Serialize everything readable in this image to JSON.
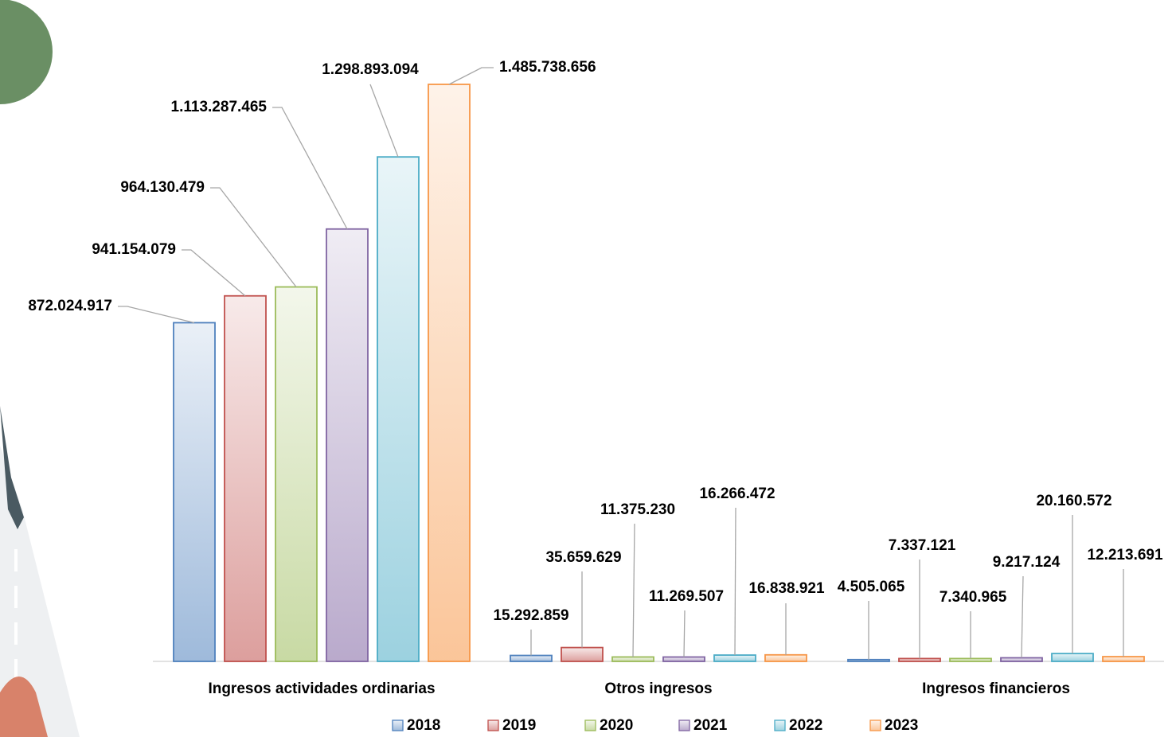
{
  "chart_data": {
    "type": "bar",
    "categories": [
      "Ingresos actividades ordinarias",
      "Otros ingresos",
      "Ingresos financieros"
    ],
    "series": [
      {
        "name": "2018",
        "color": "#4f81bd",
        "values": [
          872024917,
          15292859,
          4505065
        ],
        "value_labels": [
          "872.024.917",
          "15.292.859",
          "4.505.065"
        ]
      },
      {
        "name": "2019",
        "color": "#c0504d",
        "values": [
          941154079,
          35659629,
          7337121
        ],
        "value_labels": [
          "941.154.079",
          "35.659.629",
          "7.337.121"
        ]
      },
      {
        "name": "2020",
        "color": "#9bbb59",
        "values": [
          964130479,
          11375230,
          7340965
        ],
        "value_labels": [
          "964.130.479",
          "11.375.230",
          "7.340.965"
        ]
      },
      {
        "name": "2021",
        "color": "#8064a2",
        "values": [
          1113287465,
          11269507,
          9217124
        ],
        "value_labels": [
          "1.113.287.465",
          "11.269.507",
          "9.217.124"
        ]
      },
      {
        "name": "2022",
        "color": "#4bacc6",
        "values": [
          1298893094,
          16266472,
          20160572
        ],
        "value_labels": [
          "1.298.893.094",
          "16.266.472",
          "20.160.572"
        ]
      },
      {
        "name": "2023",
        "color": "#f79646",
        "values": [
          1485738656,
          16838921,
          12213691
        ],
        "value_labels": [
          "1.485.738.656",
          "16.838.921",
          "12.213.691"
        ]
      }
    ],
    "legend": "bottom"
  }
}
